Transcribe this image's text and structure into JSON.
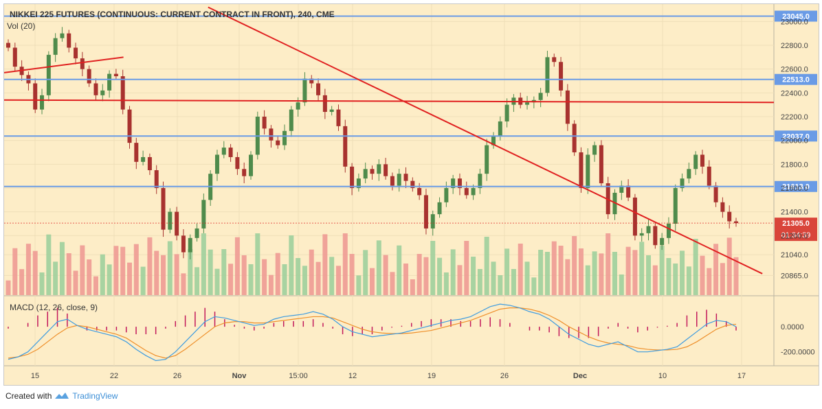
{
  "header": {
    "title": "NIKKEI 225 FUTURES (CONTINUOUS: CURRENT CONTRACT IN FRONT), 240, CME",
    "vol_label": "Vol (20)"
  },
  "macd": {
    "label": "MACD (12, 26, close, 9)",
    "ticks": [
      "0.0000",
      "-200.0000"
    ]
  },
  "footer": {
    "created_with": "Created with",
    "brand": "TradingView"
  },
  "colors": {
    "background": "#fdedc7",
    "up": "#4f8b4c",
    "down": "#a8322f",
    "vol_up": "#9fcf9c",
    "vol_down": "#ee9a93",
    "hline": "#6a9be6",
    "trend": "#e02020",
    "macd_line": "#3d9be0",
    "signal_line": "#ee8f2a",
    "hist": "#c2185b"
  },
  "chart_data": {
    "type": "candlestick",
    "interval": "240",
    "exchange": "CME",
    "price_axis": {
      "ticks": [
        "23000.0",
        "22800.0",
        "22600.0",
        "22400.0",
        "22200.0",
        "22000.0",
        "21800.0",
        "21600.0",
        "21400.0",
        "21200.0",
        "21040.0",
        "20865.0"
      ],
      "range": [
        20700,
        23100
      ]
    },
    "x_axis": {
      "labels": [
        "15",
        "22",
        "26",
        "Nov",
        "15:00",
        "12",
        "19",
        "26",
        "Dec",
        "10",
        "17"
      ]
    },
    "price_levels": [
      {
        "label": "23045.0",
        "value": 23045.0
      },
      {
        "label": "22513.0",
        "value": 22513.0
      },
      {
        "label": "22037.0",
        "value": 22037.0
      },
      {
        "label": "21613.0",
        "value": 21613.0
      }
    ],
    "last_price": {
      "label": "21305.0",
      "value": 21305.0,
      "countdown": "01:34:39"
    },
    "trend_lines": [
      {
        "name": "resistance-horizontal",
        "from": [
          0,
          22340
        ],
        "to": [
          1,
          22320
        ]
      },
      {
        "name": "descending-trend",
        "from": [
          0.265,
          23120
        ],
        "to": [
          0.985,
          20880
        ]
      },
      {
        "name": "early-rising",
        "from": [
          0.0,
          22570
        ],
        "to": [
          0.155,
          22700
        ]
      }
    ],
    "price_series": [
      22780,
      22620,
      22550,
      22480,
      22260,
      22380,
      22720,
      22860,
      22900,
      22780,
      22690,
      22600,
      22480,
      22380,
      22420,
      22560,
      22540,
      22260,
      21980,
      21820,
      21860,
      21750,
      21600,
      21250,
      21400,
      21200,
      21060,
      21180,
      21260,
      21500,
      21720,
      21880,
      21940,
      21860,
      21760,
      21700,
      21880,
      22200,
      22100,
      22000,
      21960,
      22080,
      22260,
      22320,
      22520,
      22480,
      22380,
      22240,
      22260,
      22120,
      21780,
      21600,
      21680,
      21760,
      21720,
      21800,
      21700,
      21620,
      21720,
      21660,
      21600,
      21540,
      21260,
      21380,
      21480,
      21600,
      21680,
      21600,
      21540,
      21600,
      21720,
      21960,
      22040,
      22160,
      22300,
      22360,
      22300,
      22320,
      22340,
      22400,
      22700,
      22660,
      22420,
      22140,
      21900,
      21600,
      21880,
      21960,
      21640,
      21380,
      21560,
      21620,
      21520,
      21200,
      21220,
      21280,
      21120,
      21180,
      21300,
      21600,
      21680,
      21760,
      21880,
      21780,
      21620,
      21480,
      21400,
      21320,
      21305
    ],
    "macd_series": {
      "macd": [
        -260,
        -240,
        -200,
        -120,
        -40,
        40,
        60,
        10,
        -20,
        -40,
        -60,
        -80,
        -120,
        -180,
        -230,
        -270,
        -260,
        -200,
        -120,
        -40,
        40,
        80,
        70,
        50,
        30,
        10,
        20,
        60,
        80,
        90,
        100,
        120,
        100,
        60,
        0,
        -40,
        -60,
        -80,
        -70,
        -60,
        -50,
        -30,
        -10,
        10,
        30,
        50,
        60,
        80,
        120,
        160,
        180,
        170,
        150,
        120,
        100,
        60,
        0,
        -60,
        -100,
        -140,
        -160,
        -140,
        -120,
        -160,
        -200,
        -200,
        -190,
        -180,
        -160,
        -100,
        -40,
        20,
        50,
        40,
        0
      ],
      "signal": [
        -250,
        -240,
        -220,
        -180,
        -120,
        -60,
        -10,
        10,
        0,
        -20,
        -40,
        -60,
        -90,
        -140,
        -190,
        -230,
        -250,
        -230,
        -180,
        -120,
        -60,
        0,
        30,
        40,
        40,
        30,
        30,
        40,
        50,
        60,
        70,
        80,
        80,
        70,
        40,
        10,
        -20,
        -40,
        -50,
        -55,
        -55,
        -50,
        -40,
        -30,
        -10,
        10,
        30,
        50,
        80,
        110,
        140,
        150,
        150,
        140,
        120,
        90,
        50,
        0,
        -40,
        -80,
        -110,
        -130,
        -140,
        -150,
        -170,
        -180,
        -185,
        -185,
        -180,
        -160,
        -120,
        -70,
        -20,
        10,
        20
      ],
      "ylim": [
        -300,
        230
      ]
    }
  }
}
